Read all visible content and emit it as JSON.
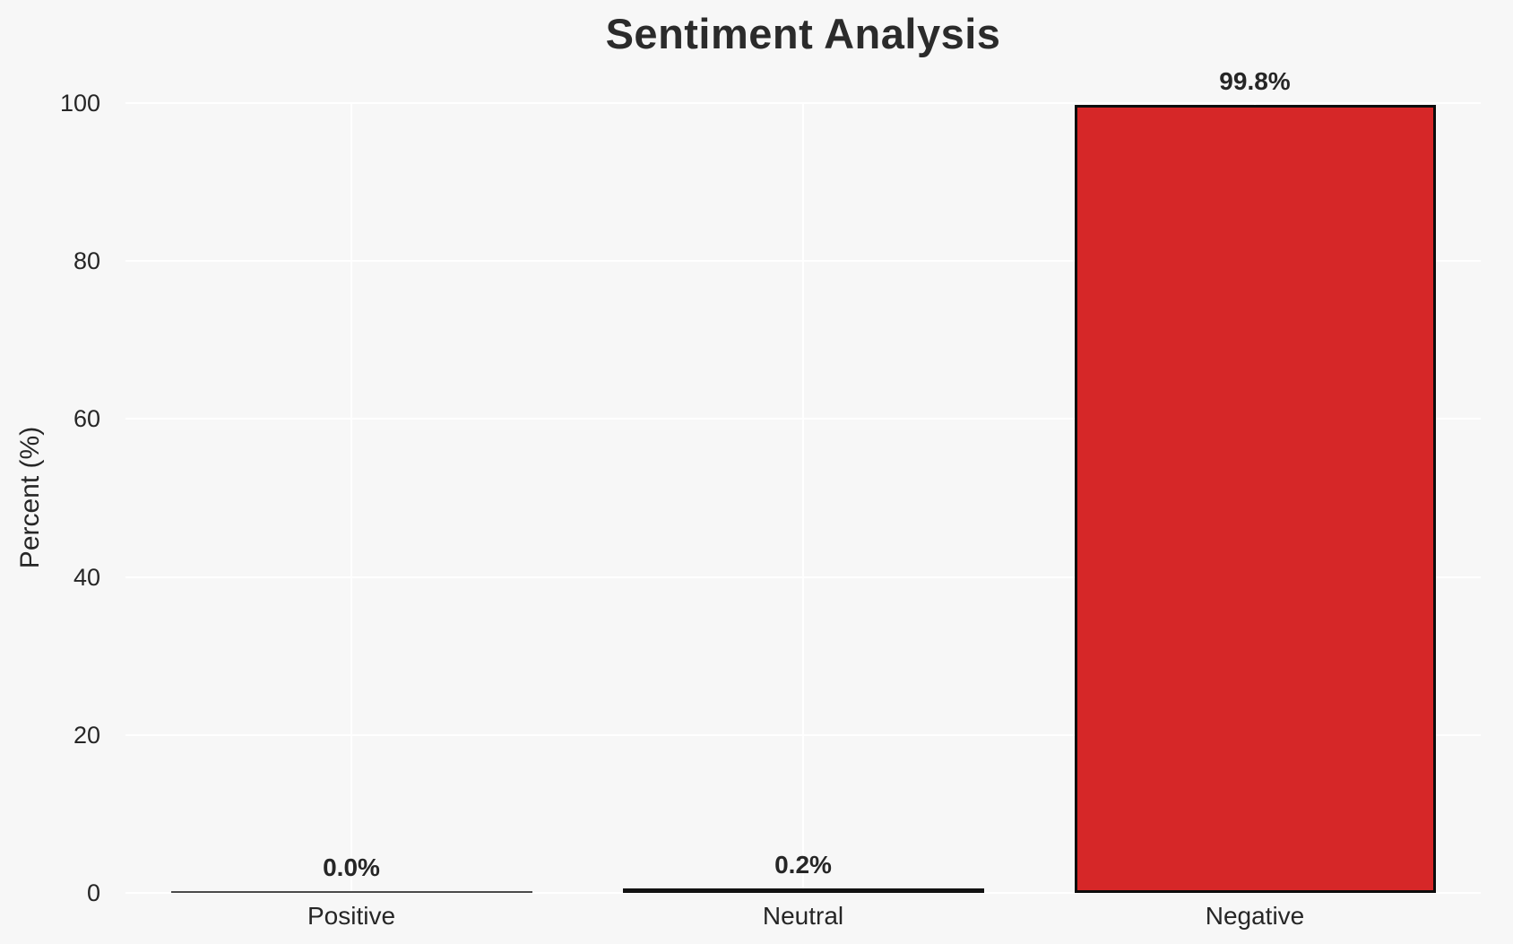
{
  "chart_data": {
    "type": "bar",
    "title": "Sentiment Analysis",
    "xlabel": "",
    "ylabel": "Percent (%)",
    "ylim": [
      0,
      100
    ],
    "yticks": [
      0,
      20,
      40,
      60,
      80,
      100
    ],
    "grid": true,
    "grid_color": "#ffffff",
    "background_color": "#f7f7f7",
    "categories": [
      "Positive",
      "Neutral",
      "Negative"
    ],
    "values": [
      0.0,
      0.2,
      99.8
    ],
    "value_labels": [
      "0.0%",
      "0.2%",
      "99.8%"
    ],
    "bar_colors": [
      null,
      null,
      "#d62728"
    ],
    "edge_color": "#0d0d0d",
    "legend": null
  }
}
